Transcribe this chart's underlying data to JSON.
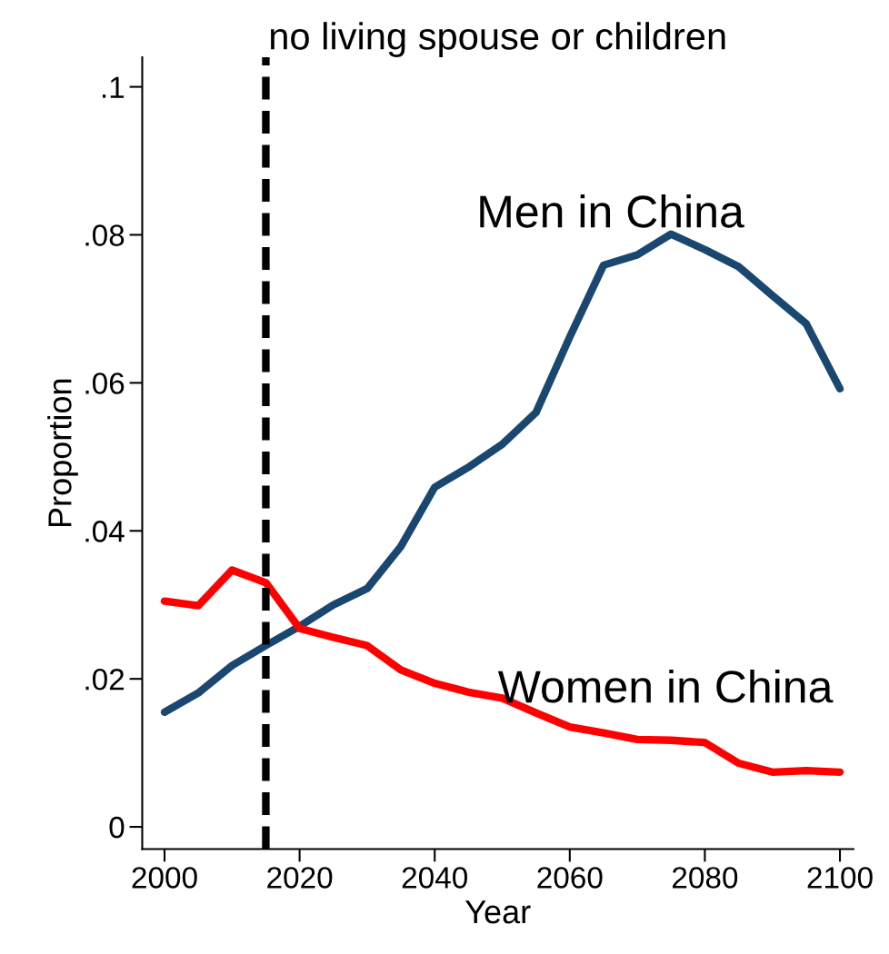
{
  "chart_data": {
    "type": "line",
    "title": "no living spouse or children",
    "xlabel": "Year",
    "ylabel": "Proportion",
    "x": [
      2000,
      2005,
      2010,
      2015,
      2020,
      2025,
      2030,
      2035,
      2040,
      2045,
      2050,
      2055,
      2060,
      2065,
      2070,
      2075,
      2080,
      2085,
      2090,
      2095,
      2100
    ],
    "series": [
      {
        "name": "Men in China",
        "color": "#1a476f",
        "values": [
          0.0155,
          0.0181,
          0.0218,
          0.0245,
          0.0271,
          0.03,
          0.0322,
          0.0379,
          0.0459,
          0.0486,
          0.0517,
          0.056,
          0.0662,
          0.0759,
          0.0773,
          0.0801,
          0.078,
          0.0757,
          0.0718,
          0.068,
          0.0592
        ]
      },
      {
        "name": "Women in China",
        "color": "#ff0000",
        "values": [
          0.0305,
          0.0299,
          0.0347,
          0.033,
          0.0268,
          0.0256,
          0.0245,
          0.0212,
          0.0194,
          0.0182,
          0.0174,
          0.0154,
          0.0135,
          0.0127,
          0.0118,
          0.0117,
          0.0114,
          0.0086,
          0.0074,
          0.0076,
          0.0074
        ]
      }
    ],
    "xlim": [
      1996.7,
      2102
    ],
    "xticks": [
      2000,
      2020,
      2040,
      2060,
      2080,
      2100
    ],
    "ylim": [
      -0.003,
      0.104
    ],
    "yticks": [
      {
        "value": 0,
        "label": "0"
      },
      {
        "value": 0.02,
        "label": ".02"
      },
      {
        "value": 0.04,
        "label": ".04"
      },
      {
        "value": 0.06,
        "label": ".06"
      },
      {
        "value": 0.08,
        "label": ".08"
      },
      {
        "value": 0.1,
        "label": ".1"
      }
    ],
    "ref_lines": [
      {
        "axis": "x",
        "value": 2015,
        "color": "#000000",
        "line_style": "dashed"
      }
    ],
    "grid": false,
    "legend": false
  }
}
